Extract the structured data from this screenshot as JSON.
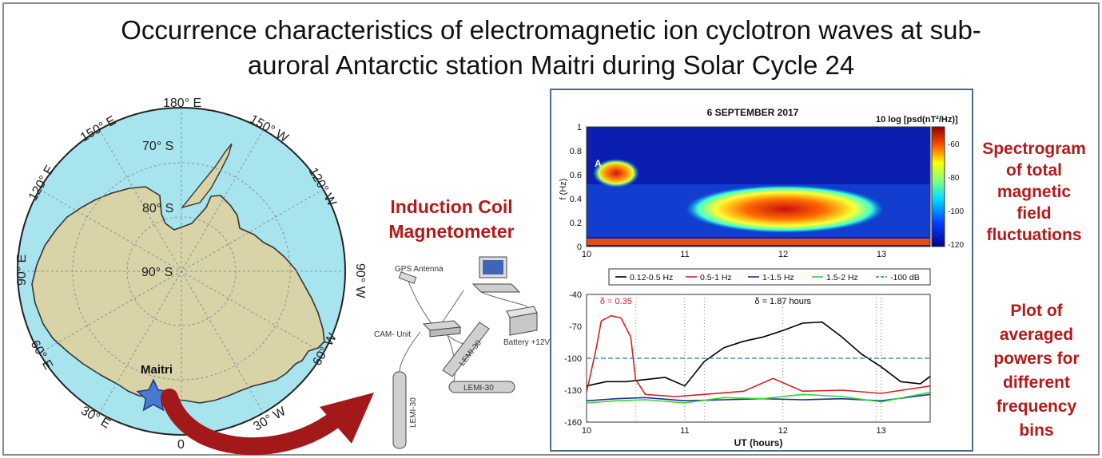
{
  "title": {
    "line1": "Occurrence characteristics of electromagnetic ion cyclotron waves at sub-",
    "line2": "auroral Antarctic station Maitri during Solar Cycle 24"
  },
  "map": {
    "longitudes": [
      "180° E",
      "150° W",
      "120° W",
      "90° W",
      "60° W",
      "30° W",
      "0",
      "30° E",
      "60° E",
      "90° E",
      "120° E",
      "150° E"
    ],
    "latitudes": [
      "70° S",
      "80° S",
      "90° S"
    ],
    "station": "Maitri",
    "ocean_color": "#a8e4ee",
    "land_color": "#d9d3a8"
  },
  "instrument": {
    "title_line1": "Induction Coil",
    "title_line2": "Magnetometer",
    "labels": {
      "gps": "GPS Antenna",
      "cam": "CAM- Unit",
      "battery": "Battery +12V",
      "lemi_1": "LEMI-30",
      "lemi_2": "LEMI-30",
      "lemi_3": "LEMI-30"
    }
  },
  "spectrogram": {
    "title": "6 SEPTEMBER 2017",
    "colorbar_label": "10 log [psd(nT²/Hz)]",
    "ylabel": "f (Hz)",
    "yticks": [
      "0",
      "0.2",
      "0.4",
      "0.6",
      "0.8",
      "1"
    ],
    "xticks": [
      "10",
      "11",
      "12",
      "13"
    ],
    "cbar_ticks": [
      "-60",
      "-80",
      "-100",
      "-120"
    ],
    "event_label": "A"
  },
  "chart_data": {
    "type": "line",
    "xlabel": "UT (hours)",
    "xlim": [
      10,
      13.5
    ],
    "ylim": [
      -160,
      -40
    ],
    "xticks": [
      "10",
      "11",
      "12",
      "13"
    ],
    "yticks": [
      "-40",
      "-70",
      "-100",
      "-130",
      "-160"
    ],
    "legend_position": "top",
    "series": [
      {
        "name": "0.12-0.5 Hz",
        "color": "#000000",
        "x": [
          10.0,
          10.2,
          10.4,
          10.6,
          10.8,
          11.0,
          11.2,
          11.4,
          11.6,
          11.8,
          12.0,
          12.2,
          12.4,
          12.6,
          12.8,
          13.0,
          13.2,
          13.4,
          13.5
        ],
        "y": [
          -126,
          -122,
          -122,
          -120,
          -118,
          -126,
          -103,
          -90,
          -84,
          -80,
          -74,
          -67,
          -66,
          -80,
          -96,
          -108,
          -122,
          -124,
          -117
        ]
      },
      {
        "name": "0.5-1 Hz",
        "color": "#d62020",
        "x": [
          10.0,
          10.1,
          10.15,
          10.25,
          10.35,
          10.45,
          10.5,
          10.6,
          10.9,
          11.2,
          11.6,
          11.9,
          12.2,
          12.6,
          13.0,
          13.5
        ],
        "y": [
          -132,
          -90,
          -65,
          -60,
          -62,
          -80,
          -120,
          -134,
          -136,
          -134,
          -131,
          -119,
          -131,
          -130,
          -133,
          -126
        ]
      },
      {
        "name": "1-1.5 Hz",
        "color": "#1c2f90",
        "x": [
          10.0,
          10.3,
          10.6,
          11.0,
          11.4,
          11.8,
          12.2,
          12.6,
          13.0,
          13.5
        ],
        "y": [
          -140,
          -138,
          -137,
          -140,
          -139,
          -138,
          -139,
          -138,
          -140,
          -134
        ]
      },
      {
        "name": "1.5-2 Hz",
        "color": "#35d435",
        "x": [
          10.0,
          10.3,
          10.6,
          11.0,
          11.4,
          11.8,
          12.2,
          12.6,
          13.0,
          13.5
        ],
        "y": [
          -142,
          -140,
          -139,
          -142,
          -137,
          -138,
          -134,
          -136,
          -141,
          -132
        ]
      },
      {
        "name": "-100 dB",
        "color": "#2b7bbf",
        "dashed": true,
        "x": [
          10.0,
          13.5
        ],
        "y": [
          -100,
          -100
        ]
      }
    ],
    "annotations": [
      {
        "text": "δ = 0.35",
        "x": 10.3,
        "y": -49,
        "color": "#d62020"
      },
      {
        "text": "δ = 1.87 hours",
        "x": 12.0,
        "y": -49,
        "color": "#000000"
      }
    ]
  },
  "side_labels": {
    "spectro_1": "Spectrogram",
    "spectro_2": "of total",
    "spectro_3": "magnetic",
    "spectro_4": "field",
    "spectro_5": "fluctuations",
    "power_1": "Plot of",
    "power_2": "averaged",
    "power_3": "powers for",
    "power_4": "different",
    "power_5": "frequency",
    "power_6": "bins"
  }
}
